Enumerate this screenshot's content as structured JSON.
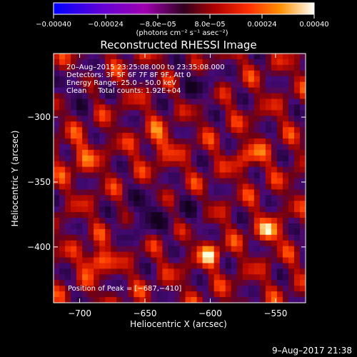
{
  "chart_data": {
    "type": "heatmap",
    "title": "Reconstructed RHESSI Image",
    "xlabel": "Heliocentric X (arcsec)",
    "ylabel": "Heliocentric Y (arcsec)",
    "xlim": [
      -720,
      -527
    ],
    "ylim": [
      -443,
      -251
    ],
    "x_ticks": [
      -700,
      -650,
      -600,
      -550
    ],
    "y_ticks": [
      -300,
      -350,
      -400
    ],
    "x_tick_labels": [
      "−700",
      "−650",
      "−600",
      "−550"
    ],
    "y_tick_labels": [
      "−300",
      "−350",
      "−400"
    ],
    "colorbar": {
      "range": [
        -0.0004,
        0.0004
      ],
      "ticks": [
        -0.0004,
        -0.00024,
        -8e-05,
        8e-05,
        0.00024,
        0.0004
      ],
      "tick_labels": [
        "−0.00040",
        "−0.00024",
        "−8.0e−05",
        "8.0e−05",
        "0.00024",
        "0.00040"
      ],
      "unit_label": "(photons cm⁻² s⁻¹ asec⁻²)"
    },
    "peak": {
      "x": -687,
      "y": -410
    },
    "grid": false
  },
  "annotations": {
    "time_range": "20–Aug–2015 23:25:08.000 to 23:35:08.000",
    "detectors": "Detectors: 3F 5F 6F 7F 8F 9F, Att 0",
    "energy_range": "Energy Range: 25.0 – 50.0 keV",
    "clean": "Clean     Total counts: 1.92E+04",
    "peak_label": "Position of Peak = [−687,−410]"
  },
  "footer": {
    "timestamp": "9–Aug–2017 21:38"
  }
}
